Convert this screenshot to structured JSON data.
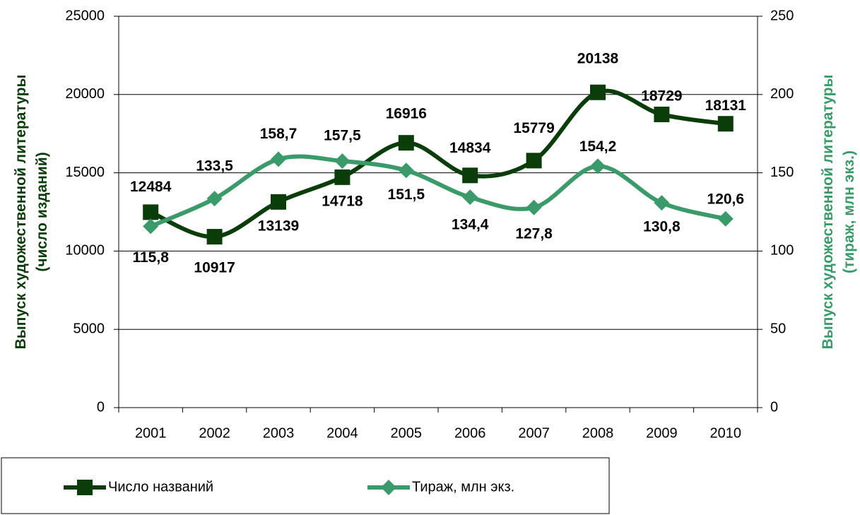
{
  "chart_data": {
    "type": "line",
    "y_label": [
      "Выпуск художественной литературы",
      "(число изданий)"
    ],
    "y2_label": [
      "Выпуск художественной литературы",
      "(тираж, млн экз.)"
    ],
    "categories": [
      "2001",
      "2002",
      "2003",
      "2004",
      "2005",
      "2006",
      "2007",
      "2008",
      "2009",
      "2010"
    ],
    "series": [
      {
        "name": "Число названий",
        "color": "#0b3d0b",
        "marker": "square",
        "values": [
          12484,
          10917,
          13139,
          14718,
          16916,
          14834,
          15779,
          20138,
          18729,
          18131
        ]
      },
      {
        "name": "Тираж, млн экз.",
        "color": "#3a9a6a",
        "marker": "diamond",
        "axis": "y2",
        "values": [
          115.8,
          133.5,
          158.7,
          157.5,
          151.5,
          134.4,
          127.8,
          154.2,
          130.8,
          120.6
        ],
        "value_labels": [
          "115,8",
          "133,5",
          "158,7",
          "157,5",
          "151,5",
          "134,4",
          "127,8",
          "154,2",
          "130,8",
          "120,6"
        ]
      }
    ],
    "ylim": [
      0,
      25000
    ],
    "yticks": [
      0,
      5000,
      10000,
      15000,
      20000,
      25000
    ],
    "y2lim": [
      0,
      250
    ],
    "y2ticks": [
      0,
      50,
      100,
      150,
      200,
      250
    ],
    "grid": true,
    "legend": "bottom"
  }
}
